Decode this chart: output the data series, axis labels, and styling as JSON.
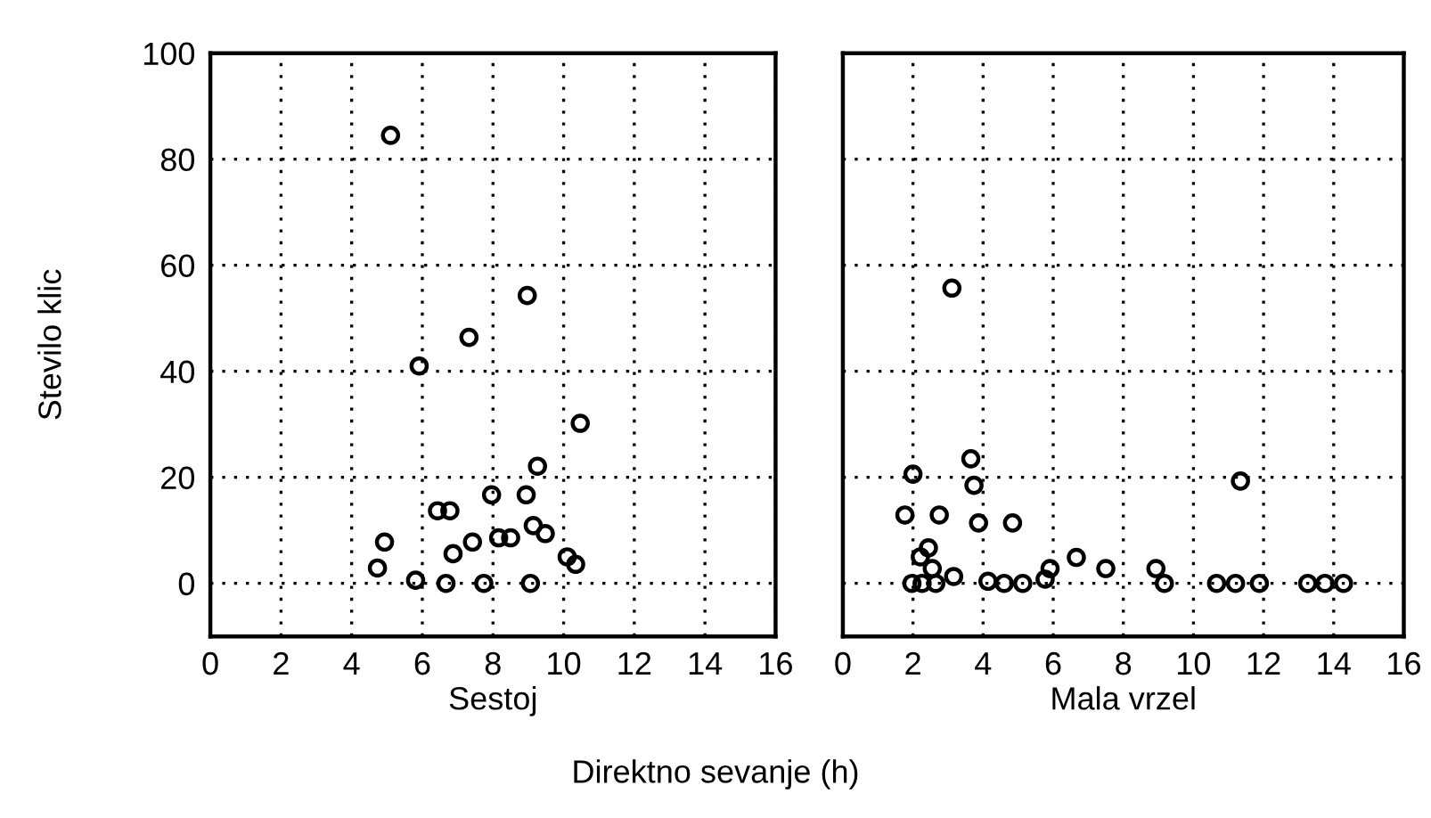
{
  "chart_data": [
    {
      "type": "scatter",
      "xlabel": "Sestoj",
      "ylabel": "Stevilo klic",
      "annotations": [
        "Direktno sevanje (h)"
      ],
      "xlim": [
        0,
        16
      ],
      "xticks": [
        0,
        2,
        4,
        6,
        8,
        10,
        12,
        14,
        16
      ],
      "ylim": [
        -10,
        100
      ],
      "yticks": [
        0,
        20,
        40,
        60,
        80,
        100
      ],
      "grid": true,
      "marker": "circle",
      "series": [
        {
          "color": "#000000",
          "x": [
            5.1,
            8.97,
            7.32,
            5.91,
            10.47,
            9.26,
            7.96,
            8.94,
            6.43,
            6.78,
            9.14,
            9.48,
            4.93,
            7.42,
            8.16,
            8.5,
            6.87,
            10.1,
            10.34,
            4.73,
            5.81,
            6.67,
            7.74,
            9.06
          ],
          "values": [
            84.5,
            54.3,
            46.4,
            41.0,
            30.2,
            22.1,
            16.7,
            16.7,
            13.7,
            13.7,
            10.9,
            9.4,
            7.8,
            7.8,
            8.6,
            8.6,
            5.6,
            5.0,
            3.6,
            2.9,
            0.6,
            0,
            0,
            0
          ]
        }
      ]
    },
    {
      "type": "scatter",
      "xlabel": "Mala vrzel",
      "xlim": [
        0,
        16
      ],
      "xticks": [
        0,
        2,
        4,
        6,
        8,
        10,
        12,
        14,
        16
      ],
      "ylim": [
        -10,
        100
      ],
      "yticks": [
        0,
        20,
        40,
        60,
        80,
        100
      ],
      "tick_labels": "x",
      "grid": true,
      "marker": "circle",
      "series": [
        {
          "color": "#000000",
          "x": [
            3.11,
            3.65,
            3.74,
            2.0,
            11.34,
            1.77,
            2.75,
            3.87,
            4.84,
            2.44,
            2.21,
            2.55,
            6.66,
            5.91,
            7.5,
            8.93,
            3.16,
            1.97,
            2.26,
            2.65,
            4.14,
            4.6,
            5.13,
            5.77,
            9.17,
            10.66,
            11.2,
            11.88,
            13.26,
            13.75,
            14.28
          ],
          "values": [
            55.7,
            23.5,
            18.5,
            20.6,
            19.3,
            12.9,
            12.9,
            11.4,
            11.4,
            6.7,
            5.0,
            2.8,
            4.9,
            2.8,
            2.8,
            2.8,
            1.3,
            0,
            0,
            0,
            0.4,
            0,
            0,
            0.8,
            0,
            0,
            0,
            0,
            0,
            0,
            0
          ]
        }
      ]
    }
  ]
}
